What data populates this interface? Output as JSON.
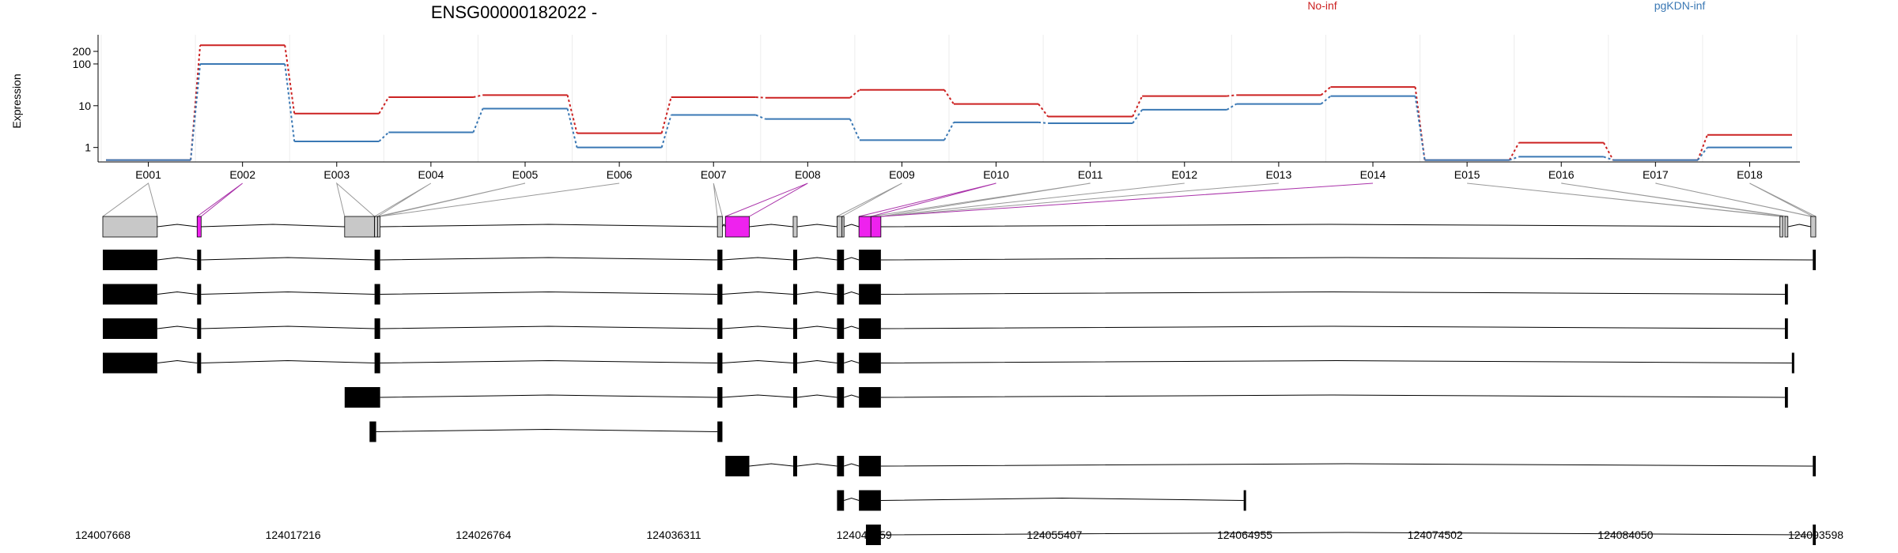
{
  "chart_data": {
    "type": "line",
    "title": "ENSG00000182022 -",
    "ylabel": "Expression",
    "yscale": "log",
    "ylim": [
      0.45,
      420
    ],
    "yticks": [
      1,
      10,
      100,
      200
    ],
    "ytick_labels": [
      "1",
      "10",
      "100",
      "200"
    ],
    "grid": "vertical",
    "legend_placement": "top-right",
    "categories": [
      "E001",
      "E002",
      "E003",
      "E004",
      "E005",
      "E006",
      "E007",
      "E008",
      "E009",
      "E010",
      "E011",
      "E012",
      "E013",
      "E014",
      "E015",
      "E016",
      "E017",
      "E018"
    ],
    "series": [
      {
        "name": "No-inf",
        "color": "#cc2222",
        "values": [
          0.5,
          280,
          6.5,
          16,
          18,
          2.2,
          16,
          15.5,
          24,
          11,
          5.5,
          17,
          18,
          28,
          0.5,
          1.3,
          0.5,
          2.0
        ]
      },
      {
        "name": "pgKDN-inf",
        "color": "#3a78b4",
        "values": [
          0.5,
          100,
          1.4,
          2.3,
          8.5,
          1.0,
          6.0,
          4.8,
          1.5,
          4.0,
          3.8,
          8.0,
          11.0,
          17.0,
          0.5,
          0.6,
          0.5,
          1.0
        ]
      }
    ],
    "genomic_axis": {
      "start": 124007668,
      "end": 124093598,
      "tick_labels": [
        "124007668",
        "124017216",
        "124026764",
        "124036311",
        "124045859",
        "124055407",
        "124064955",
        "124074502",
        "124084050",
        "124093598"
      ]
    },
    "exon_bins": [
      {
        "start": 124007668,
        "end": 124010400,
        "color": "#c8c8c8"
      },
      {
        "start": 124012400,
        "end": 124012600,
        "color": "#ee22ee"
      },
      {
        "start": 124019800,
        "end": 124021300,
        "color": "#c8c8c8"
      },
      {
        "start": 124021300,
        "end": 124021450,
        "color": "#c8c8c8"
      },
      {
        "start": 124021450,
        "end": 124021580,
        "color": "#c8c8c8"
      },
      {
        "start": 124038500,
        "end": 124038750,
        "color": "#c8c8c8"
      },
      {
        "start": 124038900,
        "end": 124040100,
        "color": "#ee22ee"
      },
      {
        "start": 124042300,
        "end": 124042500,
        "color": "#c8c8c8"
      },
      {
        "start": 124044500,
        "end": 124044750,
        "color": "#c8c8c8"
      },
      {
        "start": 124044750,
        "end": 124044850,
        "color": "#c8c8c8"
      },
      {
        "start": 124045600,
        "end": 124046200,
        "color": "#ee22ee"
      },
      {
        "start": 124046200,
        "end": 124046700,
        "color": "#ee22ee"
      },
      {
        "start": 124091800,
        "end": 124091950,
        "color": "#c8c8c8"
      },
      {
        "start": 124092050,
        "end": 124092200,
        "color": "#c8c8c8"
      },
      {
        "start": 124093350,
        "end": 124093598,
        "color": "#c8c8c8"
      }
    ],
    "bin_links": [
      {
        "from": 0,
        "to": [
          124007668,
          124010400
        ],
        "color": "#999999"
      },
      {
        "from": 1,
        "to": [
          124012400,
          124012600
        ],
        "color": "#aa33aa"
      },
      {
        "from": 2,
        "to": [
          124019800,
          124021300
        ],
        "color": "#999999"
      },
      {
        "from": 3,
        "to": [
          124021300,
          124021450
        ],
        "color": "#999999"
      },
      {
        "from": 4,
        "to": [
          124021450,
          124021580
        ],
        "color": "#999999"
      },
      {
        "from": 5,
        "to": [
          124021580,
          124021580
        ],
        "color": "#999999"
      },
      {
        "from": 6,
        "to": [
          124038500,
          124038750
        ],
        "color": "#999999"
      },
      {
        "from": 7,
        "to": [
          124038900,
          124040100
        ],
        "color": "#aa33aa"
      },
      {
        "from": 8,
        "to": [
          124044500,
          124044750
        ],
        "color": "#999999"
      },
      {
        "from": 9,
        "to": [
          124045600,
          124046200
        ],
        "color": "#aa33aa"
      },
      {
        "from": 10,
        "to": [
          124046200,
          124046700
        ],
        "color": "#999999"
      },
      {
        "from": 11,
        "to": [
          124046700,
          124046700
        ],
        "color": "#999999"
      },
      {
        "from": 12,
        "to": [
          124046700,
          124046700
        ],
        "color": "#999999"
      },
      {
        "from": 13,
        "to": [
          124046700,
          124046700
        ],
        "color": "#aa33aa"
      },
      {
        "from": 14,
        "to": [
          124091800,
          124091950
        ],
        "color": "#999999"
      },
      {
        "from": 15,
        "to": [
          124092050,
          124092200
        ],
        "color": "#999999"
      },
      {
        "from": 16,
        "to": [
          124093350,
          124093400
        ],
        "color": "#999999"
      },
      {
        "from": 17,
        "to": [
          124093450,
          124093598
        ],
        "color": "#999999"
      }
    ],
    "transcripts": [
      {
        "exons": [
          [
            124007668,
            124010400
          ],
          [
            124012400,
            124012600
          ],
          [
            124021300,
            124021580
          ],
          [
            124038500,
            124038750
          ],
          [
            124042300,
            124042500
          ],
          [
            124044500,
            124044850
          ],
          [
            124045600,
            124046700
          ],
          [
            124093450,
            124093598
          ]
        ]
      },
      {
        "exons": [
          [
            124007668,
            124010400
          ],
          [
            124012400,
            124012600
          ],
          [
            124021300,
            124021580
          ],
          [
            124038500,
            124038750
          ],
          [
            124042300,
            124042500
          ],
          [
            124044500,
            124044850
          ],
          [
            124045600,
            124046700
          ],
          [
            124092050,
            124092200
          ]
        ]
      },
      {
        "exons": [
          [
            124007668,
            124010400
          ],
          [
            124012400,
            124012600
          ],
          [
            124021300,
            124021580
          ],
          [
            124038500,
            124038750
          ],
          [
            124042300,
            124042500
          ],
          [
            124044500,
            124044850
          ],
          [
            124045600,
            124046700
          ],
          [
            124092050,
            124092200
          ]
        ]
      },
      {
        "exons": [
          [
            124007668,
            124010400
          ],
          [
            124012400,
            124012600
          ],
          [
            124021300,
            124021580
          ],
          [
            124038500,
            124038750
          ],
          [
            124042300,
            124042500
          ],
          [
            124044500,
            124044850
          ],
          [
            124045600,
            124046700
          ],
          [
            124092400,
            124092450
          ]
        ]
      },
      {
        "exons": [
          [
            124019800,
            124021580
          ],
          [
            124038500,
            124038750
          ],
          [
            124042300,
            124042500
          ],
          [
            124044500,
            124044850
          ],
          [
            124045600,
            124046700
          ],
          [
            124092050,
            124092200
          ]
        ]
      },
      {
        "exons": [
          [
            124021050,
            124021380
          ],
          [
            124038500,
            124038750
          ]
        ]
      },
      {
        "exons": [
          [
            124038900,
            124040100
          ],
          [
            124042300,
            124042500
          ],
          [
            124044500,
            124044850
          ],
          [
            124045600,
            124046700
          ],
          [
            124093450,
            124093598
          ]
        ]
      },
      {
        "exons": [
          [
            124044500,
            124044850
          ],
          [
            124045600,
            124046700
          ],
          [
            124064900,
            124064955
          ]
        ]
      },
      {
        "exons": [
          [
            124045950,
            124046700
          ],
          [
            124093450,
            124093598
          ]
        ]
      }
    ]
  }
}
